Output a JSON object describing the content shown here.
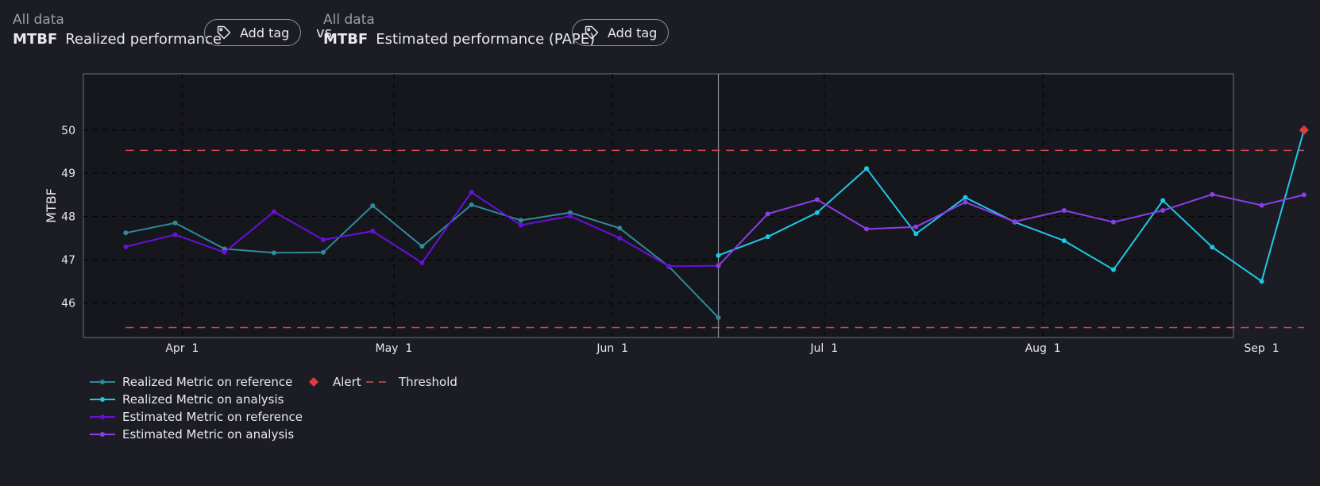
{
  "header": {
    "left": {
      "scope": "All data",
      "metric": "MTBF",
      "subtitle": "Realized performance",
      "tag_label": "Add tag"
    },
    "vs": "vs.",
    "right": {
      "scope": "All data",
      "metric": "MTBF",
      "subtitle": "Estimated performance (PAPE)",
      "tag_label": "Add tag"
    }
  },
  "colors": {
    "realized_ref": "#2f8a99",
    "realized_ana": "#1fc7e6",
    "estimated_ref": "#6a0fdb",
    "estimated_ana": "#8b3de8",
    "alert": "#e03a3e",
    "threshold": "#d64a4a"
  },
  "chart_data": {
    "type": "line",
    "ylabel": "MTBF",
    "ylim": [
      45.2,
      51.3
    ],
    "yticks": [
      46,
      47,
      48,
      49,
      50
    ],
    "xlim_days": [
      -14,
      149
    ],
    "xticks": [
      {
        "label": "Apr 1",
        "day": 0
      },
      {
        "label": "May 1",
        "day": 30
      },
      {
        "label": "Jun 1",
        "day": 61
      },
      {
        "label": "Jul 1",
        "day": 91
      },
      {
        "label": "Aug 1",
        "day": 122
      },
      {
        "label": "Sep 1",
        "day": 153
      }
    ],
    "reference_analysis_split_day": 76,
    "thresholds": {
      "upper": 49.53,
      "lower": 45.43,
      "start_day": -8,
      "end_day": 159
    },
    "series": [
      {
        "name": "Realized Metric on reference",
        "color_key": "realized_ref",
        "x": [
          -8,
          -1,
          6,
          13,
          20,
          27,
          34,
          41,
          48,
          55,
          62,
          69,
          76
        ],
        "y": [
          47.62,
          47.85,
          47.25,
          47.16,
          47.17,
          48.25,
          47.31,
          48.27,
          47.91,
          48.09,
          47.73,
          46.84,
          45.66
        ]
      },
      {
        "name": "Realized Metric on analysis",
        "color_key": "realized_ana",
        "x": [
          76,
          83,
          90,
          97,
          104,
          111,
          118,
          125,
          132,
          139,
          146,
          153,
          159
        ],
        "y": [
          47.1,
          47.53,
          48.09,
          49.11,
          47.6,
          48.44,
          47.87,
          47.44,
          46.77,
          48.37,
          47.29,
          46.5,
          50.0
        ]
      },
      {
        "name": "Estimated Metric on reference",
        "color_key": "estimated_ref",
        "x": [
          -8,
          -1,
          6,
          13,
          20,
          27,
          34,
          41,
          48,
          55,
          62,
          69,
          76
        ],
        "y": [
          47.3,
          47.58,
          47.17,
          48.11,
          47.46,
          47.66,
          46.93,
          48.56,
          47.8,
          48.01,
          47.5,
          46.85,
          46.86
        ]
      },
      {
        "name": "Estimated Metric on analysis",
        "color_key": "estimated_ana",
        "x": [
          76,
          83,
          90,
          97,
          104,
          111,
          118,
          125,
          132,
          139,
          146,
          153,
          159
        ],
        "y": [
          46.86,
          48.06,
          48.39,
          47.71,
          47.76,
          48.33,
          47.88,
          48.14,
          47.87,
          48.14,
          48.51,
          48.26,
          48.5
        ]
      }
    ],
    "alerts": [
      {
        "x": 159,
        "y": 50.0
      }
    ],
    "legend": {
      "col1": [
        "Realized Metric on reference",
        "Realized Metric on analysis",
        "Estimated Metric on reference",
        "Estimated Metric on analysis"
      ],
      "alert_label": "Alert",
      "threshold_label": "Threshold"
    }
  }
}
